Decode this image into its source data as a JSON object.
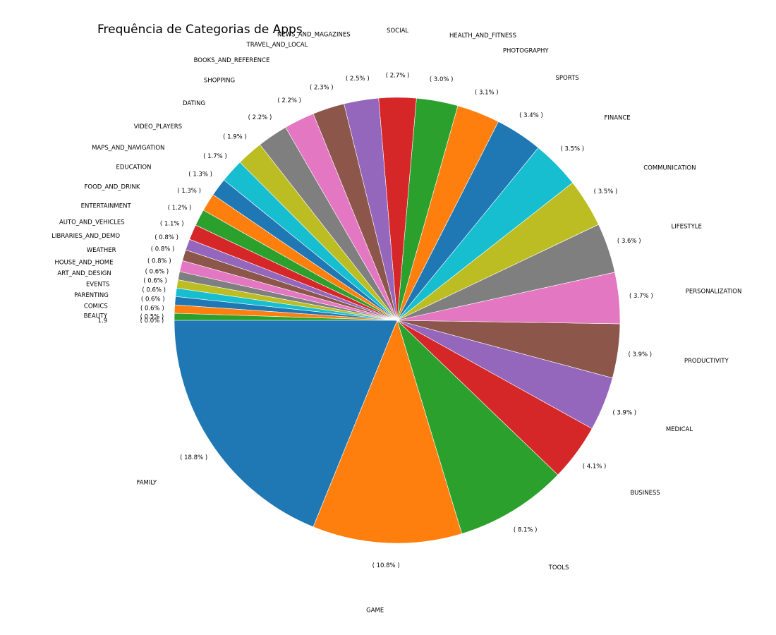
{
  "chart_data": {
    "type": "pie",
    "title": "Frequência de Categorias de Apps",
    "start_angle_deg": 180,
    "direction": "counterclockwise",
    "slices": [
      {
        "category": "FAMILY",
        "percent": 18.8,
        "label": "( 18.8% )",
        "color": "#1f77b4"
      },
      {
        "category": "GAME",
        "percent": 10.8,
        "label": "( 10.8% )",
        "color": "#ff7f0e"
      },
      {
        "category": "TOOLS",
        "percent": 8.1,
        "label": "( 8.1% )",
        "color": "#2ca02c"
      },
      {
        "category": "BUSINESS",
        "percent": 4.1,
        "label": "( 4.1% )",
        "color": "#d62728"
      },
      {
        "category": "MEDICAL",
        "percent": 3.9,
        "label": "( 3.9% )",
        "color": "#9467bd"
      },
      {
        "category": "PRODUCTIVITY",
        "percent": 3.9,
        "label": "( 3.9% )",
        "color": "#8c564b"
      },
      {
        "category": "PERSONALIZATION",
        "percent": 3.7,
        "label": "( 3.7% )",
        "color": "#e377c2"
      },
      {
        "category": "LIFESTYLE",
        "percent": 3.6,
        "label": "( 3.6% )",
        "color": "#7f7f7f"
      },
      {
        "category": "COMMUNICATION",
        "percent": 3.5,
        "label": "( 3.5% )",
        "color": "#bcbd22"
      },
      {
        "category": "FINANCE",
        "percent": 3.5,
        "label": "( 3.5% )",
        "color": "#17becf"
      },
      {
        "category": "SPORTS",
        "percent": 3.4,
        "label": "( 3.4% )",
        "color": "#1f77b4"
      },
      {
        "category": "PHOTOGRAPHY",
        "percent": 3.1,
        "label": "( 3.1% )",
        "color": "#ff7f0e"
      },
      {
        "category": "HEALTH_AND_FITNESS",
        "percent": 3.0,
        "label": "( 3.0% )",
        "color": "#2ca02c"
      },
      {
        "category": "SOCIAL",
        "percent": 2.7,
        "label": "( 2.7% )",
        "color": "#d62728"
      },
      {
        "category": "NEWS_AND_MAGAZINES",
        "percent": 2.5,
        "label": "( 2.5% )",
        "color": "#9467bd"
      },
      {
        "category": "TRAVEL_AND_LOCAL",
        "percent": 2.3,
        "label": "( 2.3% )",
        "color": "#8c564b"
      },
      {
        "category": "BOOKS_AND_REFERENCE",
        "percent": 2.2,
        "label": "( 2.2% )",
        "color": "#e377c2"
      },
      {
        "category": "SHOPPING",
        "percent": 2.2,
        "label": "( 2.2% )",
        "color": "#7f7f7f"
      },
      {
        "category": "DATING",
        "percent": 1.9,
        "label": "( 1.9% )",
        "color": "#bcbd22"
      },
      {
        "category": "VIDEO_PLAYERS",
        "percent": 1.7,
        "label": "( 1.7% )",
        "color": "#17becf"
      },
      {
        "category": "MAPS_AND_NAVIGATION",
        "percent": 1.3,
        "label": "( 1.3% )",
        "color": "#1f77b4"
      },
      {
        "category": "EDUCATION",
        "percent": 1.3,
        "label": "( 1.3% )",
        "color": "#ff7f0e"
      },
      {
        "category": "FOOD_AND_DRINK",
        "percent": 1.2,
        "label": "( 1.2% )",
        "color": "#2ca02c"
      },
      {
        "category": "ENTERTAINMENT",
        "percent": 1.1,
        "label": "( 1.1% )",
        "color": "#d62728"
      },
      {
        "category": "AUTO_AND_VEHICLES",
        "percent": 0.8,
        "label": "( 0.8% )",
        "color": "#9467bd"
      },
      {
        "category": "LIBRARIES_AND_DEMO",
        "percent": 0.8,
        "label": "( 0.8% )",
        "color": "#8c564b"
      },
      {
        "category": "WEATHER",
        "percent": 0.8,
        "label": "( 0.8% )",
        "color": "#e377c2"
      },
      {
        "category": "HOUSE_AND_HOME",
        "percent": 0.6,
        "label": "( 0.6% )",
        "color": "#7f7f7f"
      },
      {
        "category": "ART_AND_DESIGN",
        "percent": 0.6,
        "label": "( 0.6% )",
        "color": "#bcbd22"
      },
      {
        "category": "EVENTS",
        "percent": 0.6,
        "label": "( 0.6% )",
        "color": "#17becf"
      },
      {
        "category": "PARENTING",
        "percent": 0.6,
        "label": "( 0.6% )",
        "color": "#1f77b4"
      },
      {
        "category": "COMICS",
        "percent": 0.6,
        "label": "( 0.6% )",
        "color": "#ff7f0e"
      },
      {
        "category": "BEAUTY",
        "percent": 0.5,
        "label": "( 0.5% )",
        "color": "#2ca02c"
      },
      {
        "category": "1.9",
        "percent": 0.0,
        "label": "( 0.0% )",
        "color": "#d62728"
      }
    ]
  }
}
